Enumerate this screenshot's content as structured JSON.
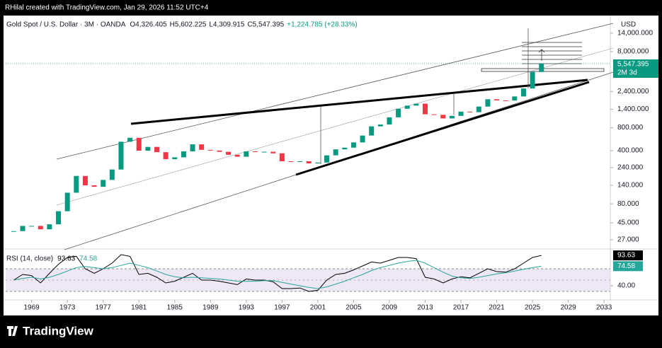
{
  "header": "RHilal created with TradingView.com, Jan 29, 2026 11:52 UTC+4",
  "footer": "TradingView",
  "chart_data": [
    {
      "type": "candlestick",
      "title": "Gold Spot / U.S. Dollar · 3M · OANDA",
      "legend_items": [
        "O4,326.405",
        "H5,602.225",
        "L4,309.915",
        "C5,547.395",
        "+1,224.785 (+28.33%)"
      ],
      "currency": "USD",
      "last_price_label": "5,547.395",
      "countdown": "2M 3d",
      "log_scale": true,
      "up_color": "#089981",
      "down_color": "#f23645",
      "x": [
        1967,
        1968,
        1969,
        1970,
        1971,
        1972,
        1973,
        1974,
        1975,
        1976,
        1977,
        1978,
        1979,
        1980,
        1981,
        1982,
        1983,
        1984,
        1985,
        1986,
        1987,
        1988,
        1989,
        1990,
        1991,
        1992,
        1993,
        1994,
        1995,
        1996,
        1997,
        1998,
        1999,
        2000,
        2001,
        2002,
        2003,
        2004,
        2005,
        2006,
        2007,
        2008,
        2009,
        2010,
        2011,
        2012,
        2013,
        2014,
        2015,
        2016,
        2017,
        2018,
        2019,
        2020,
        2021,
        2022,
        2023,
        2024,
        2025,
        2026
      ],
      "values": [
        35,
        41,
        41,
        37,
        43,
        64,
        112,
        186,
        140,
        134,
        165,
        226,
        524,
        590,
        400,
        448,
        382,
        309,
        327,
        391,
        484,
        410,
        401,
        386,
        353,
        333,
        391,
        383,
        387,
        369,
        290,
        288,
        290,
        272,
        279,
        347,
        416,
        438,
        513,
        632,
        834,
        882,
        1096,
        1421,
        1564,
        1657,
        1202,
        1184,
        1061,
        1146,
        1303,
        1282,
        1517,
        1895,
        1829,
        1824,
        2063,
        2625,
        4326,
        5547.395
      ],
      "xlim": [
        1966.1,
        2033.7
      ],
      "xticks": [
        1969,
        1973,
        1977,
        1981,
        1985,
        1989,
        1993,
        1997,
        2001,
        2005,
        2009,
        2013,
        2017,
        2021,
        2025,
        2029,
        2033
      ],
      "ylim": [
        21.3,
        20100
      ],
      "yticks": [
        {
          "value": 14000,
          "label": "14,000.000"
        },
        {
          "value": 8000,
          "label": "8,000.000"
        },
        {
          "value": 2400,
          "label": "2,400.000"
        },
        {
          "value": 1400,
          "label": "1,400.000"
        },
        {
          "value": 800,
          "label": "800.000"
        },
        {
          "value": 400,
          "label": "400.000"
        },
        {
          "value": 240,
          "label": "240.000"
        },
        {
          "value": 140,
          "label": "140.000"
        },
        {
          "value": 80,
          "label": "80.000"
        },
        {
          "value": 45,
          "label": "45.000"
        },
        {
          "value": 27,
          "label": "27.000"
        }
      ]
    },
    {
      "type": "line",
      "title": "RSI (14, close)",
      "x": [
        1967,
        1968,
        1969,
        1970,
        1971,
        1972,
        1973,
        1974,
        1975,
        1976,
        1977,
        1978,
        1979,
        1980,
        1981,
        1982,
        1983,
        1984,
        1985,
        1986,
        1987,
        1988,
        1989,
        1990,
        1991,
        1992,
        1993,
        1994,
        1995,
        1996,
        1997,
        1998,
        1999,
        2000,
        2001,
        2002,
        2003,
        2004,
        2005,
        2006,
        2007,
        2008,
        2009,
        2010,
        2011,
        2012,
        2013,
        2014,
        2015,
        2016,
        2017,
        2018,
        2019,
        2020,
        2021,
        2022,
        2023,
        2024,
        2025,
        2026
      ],
      "series": [
        {
          "name": "RSI",
          "color": "#000000",
          "values": [
            50,
            60,
            58,
            45,
            62,
            78,
            90,
            92,
            70,
            62,
            70,
            80,
            95,
            92,
            60,
            62,
            55,
            45,
            48,
            55,
            62,
            50,
            50,
            48,
            45,
            42,
            52,
            50,
            50,
            47,
            35,
            35,
            36,
            30,
            32,
            50,
            60,
            62,
            68,
            75,
            82,
            80,
            85,
            90,
            90,
            88,
            55,
            52,
            45,
            52,
            56,
            54,
            62,
            70,
            65,
            64,
            70,
            80,
            90,
            93.63
          ]
        },
        {
          "name": "MA",
          "color": "#26a69a",
          "values": [
            50,
            53,
            55,
            52,
            55,
            60,
            66,
            72,
            74,
            72,
            70,
            72,
            76,
            80,
            76,
            72,
            66,
            60,
            56,
            54,
            55,
            54,
            53,
            52,
            50,
            48,
            48,
            48,
            49,
            49,
            46,
            43,
            40,
            37,
            35,
            38,
            43,
            48,
            54,
            60,
            67,
            72,
            76,
            80,
            83,
            85,
            80,
            72,
            64,
            57,
            54,
            53,
            55,
            58,
            61,
            63,
            66,
            69,
            72,
            74.58
          ]
        }
      ],
      "xlim": [
        1966.1,
        2033.7
      ],
      "ylim": [
        17.5,
        101.25
      ],
      "yticks": [
        {
          "value": 40,
          "label": "40.00"
        }
      ]
    }
  ]
}
